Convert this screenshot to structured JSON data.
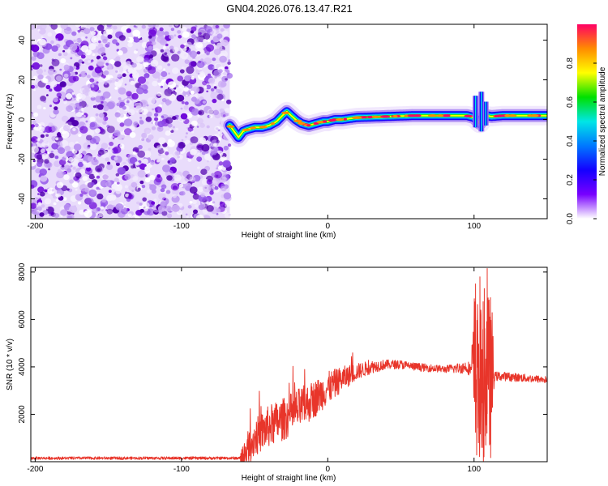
{
  "title": "GN04.2026.076.13.47.R21",
  "colors": {
    "snr_line": "#e8352a",
    "noise": "#6a00d8",
    "axis": "#000000"
  },
  "chart_data": [
    {
      "type": "heatmap",
      "name": "spectrogram",
      "xlabel": "Height of straight line (km)",
      "ylabel": "Frequency (Hz)",
      "xlim": [
        -203,
        150
      ],
      "ylim": [
        -50,
        48
      ],
      "xticks": [
        {
          "v": -200,
          "label": "-200"
        },
        {
          "v": -100,
          "label": "-100"
        },
        {
          "v": 0,
          "label": "0"
        },
        {
          "v": 100,
          "label": "100"
        }
      ],
      "yticks": [
        {
          "v": -40,
          "label": "-40"
        },
        {
          "v": -20,
          "label": "-20"
        },
        {
          "v": 0,
          "label": "0"
        },
        {
          "v": 20,
          "label": "20"
        },
        {
          "v": 40,
          "label": "40"
        }
      ],
      "noise_region": [
        -203,
        -67
      ],
      "ridge": {
        "x": [
          -67,
          -64,
          -61,
          -58,
          -55,
          -50,
          -45,
          -40,
          -35,
          -31,
          -28,
          -25,
          -22,
          -18,
          -13,
          -8,
          -3,
          0,
          5,
          10,
          20,
          40,
          60,
          80,
          95,
          100,
          104,
          108,
          112,
          120,
          150
        ],
        "y": [
          -3,
          -6,
          -9,
          -6,
          -5,
          -4,
          -4,
          -3,
          -1,
          2,
          4,
          2,
          0,
          -2,
          -3,
          -2,
          -1,
          -1,
          0,
          0,
          1,
          1.5,
          2,
          2,
          2,
          1,
          -2,
          2,
          1.5,
          2,
          2
        ]
      },
      "colorbar": {
        "label": "Normalized spectral amplitude",
        "range": [
          0,
          1
        ],
        "ticks": [
          {
            "v": 0.0,
            "label": "0.0"
          },
          {
            "v": 0.2,
            "label": "0.2"
          },
          {
            "v": 0.4,
            "label": "0.4"
          },
          {
            "v": 0.6,
            "label": "0.6"
          },
          {
            "v": 0.8,
            "label": "0.8"
          }
        ],
        "stops": [
          "#ffffff",
          "#7800ff",
          "#1400ff",
          "#0078ff",
          "#00e6e6",
          "#00e000",
          "#ffff00",
          "#ff8c00",
          "#ff0064"
        ]
      }
    },
    {
      "type": "line",
      "name": "snr",
      "xlabel": "Height of straight line (km)",
      "ylabel": "SNR (10 * v/v)",
      "xlim": [
        -203,
        150
      ],
      "ylim": [
        0,
        8200
      ],
      "xticks": [
        {
          "v": -200,
          "label": "-200"
        },
        {
          "v": -100,
          "label": "-100"
        },
        {
          "v": 0,
          "label": "0"
        },
        {
          "v": 100,
          "label": "100"
        }
      ],
      "yticks": [
        {
          "v": 2000,
          "label": "2000"
        },
        {
          "v": 4000,
          "label": "4000"
        },
        {
          "v": 6000,
          "label": "6000"
        },
        {
          "v": 8000,
          "label": "8000"
        }
      ],
      "envelope": {
        "x": [
          -203,
          -60,
          -58,
          -50,
          -40,
          -30,
          -20,
          -10,
          0,
          10,
          20,
          30,
          40,
          50,
          60,
          70,
          80,
          90,
          95,
          100,
          102,
          105,
          108,
          110,
          115,
          120,
          130,
          140,
          150
        ],
        "y": [
          150,
          150,
          200,
          1000,
          1500,
          1800,
          2200,
          2600,
          3100,
          3500,
          3800,
          4000,
          4100,
          4100,
          4000,
          3950,
          3900,
          3950,
          4000,
          3800,
          3500,
          3000,
          3800,
          3600,
          3600,
          3600,
          3550,
          3500,
          3450
        ]
      },
      "noise_amplitude": {
        "x": [
          -203,
          -60,
          -58,
          -40,
          -20,
          0,
          20,
          40,
          80,
          98,
          100,
          112,
          114,
          150
        ],
        "y": [
          60,
          60,
          700,
          900,
          900,
          700,
          350,
          200,
          150,
          300,
          3500,
          3500,
          200,
          150
        ]
      },
      "spikes": [
        {
          "x": 101,
          "y": 7500
        },
        {
          "x": 104,
          "y": 7800
        },
        {
          "x": 107,
          "y": 7300
        },
        {
          "x": 109,
          "y": 8150
        },
        {
          "x": 103,
          "y": 800
        },
        {
          "x": 106,
          "y": 600
        },
        {
          "x": 108,
          "y": 700
        }
      ]
    }
  ]
}
